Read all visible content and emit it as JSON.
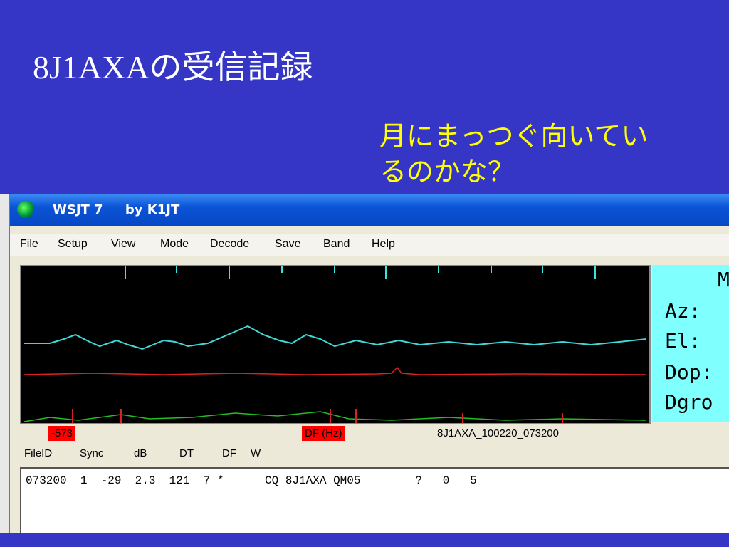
{
  "title": "8J1AXAの受信記録",
  "subtitle_lines": [
    "月にまっつぐ向いてい",
    "るのかな？"
  ],
  "window": {
    "title": "WSJT 7     by K1JT",
    "menu": [
      "File",
      "Setup",
      "View",
      "Mode",
      "Decode",
      "Save",
      "Band",
      "Help"
    ],
    "panel": [
      "M",
      "Az:",
      "El:",
      "Dop:",
      "Dgro"
    ],
    "markers": [
      "-573",
      "DF (Hz)"
    ],
    "file_name": "8J1AXA_100220_073200",
    "columns": [
      "FileID",
      "Sync",
      "dB",
      "DT",
      "DF",
      "W"
    ],
    "decode_line": "073200  1  -29  2.3  121  7 *      CQ 8J1AXA QM05        ?   0   5"
  }
}
